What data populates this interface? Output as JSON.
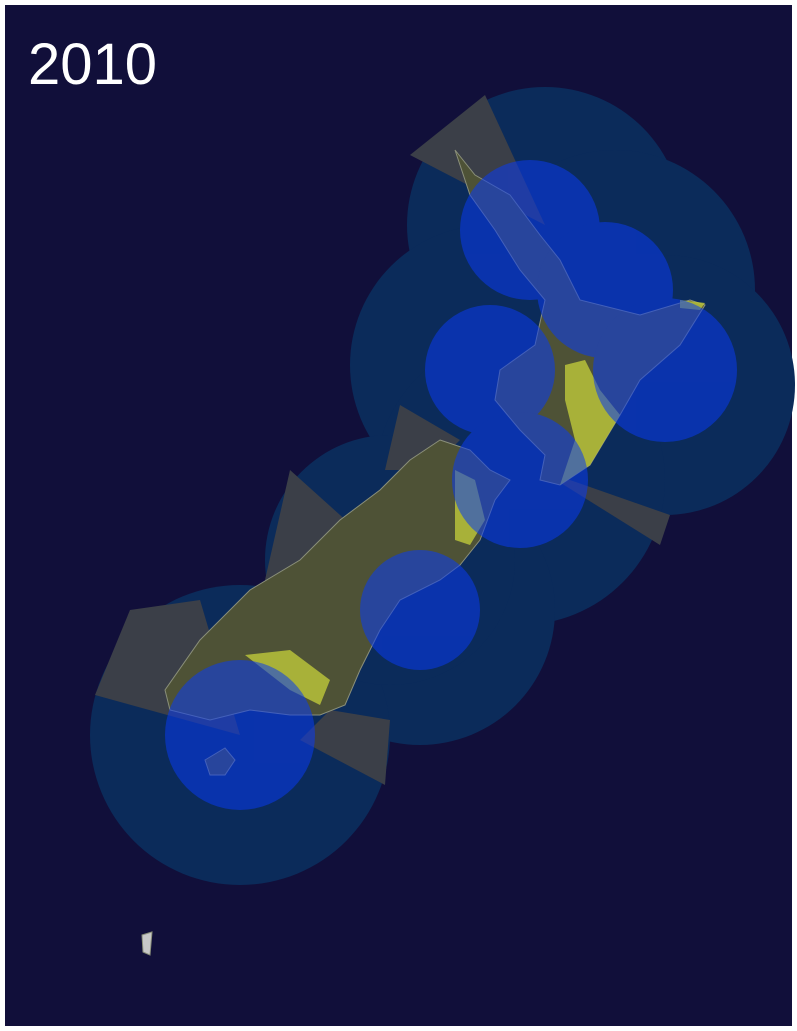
{
  "title": "2010"
}
